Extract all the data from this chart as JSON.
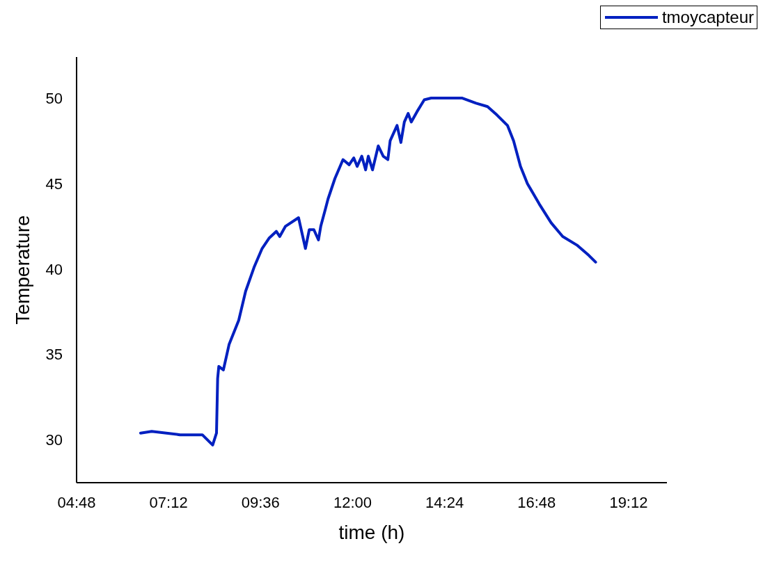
{
  "chart_data": {
    "type": "line",
    "xlabel": "time (h)",
    "ylabel": "Temperature",
    "xlim": [
      4.8,
      20.2
    ],
    "xticks": [
      {
        "value": 4.8,
        "label": "04:48"
      },
      {
        "value": 7.2,
        "label": "07:12"
      },
      {
        "value": 9.6,
        "label": "09:36"
      },
      {
        "value": 12,
        "label": "12:00"
      },
      {
        "value": 14.4,
        "label": "14:24"
      },
      {
        "value": 16.8,
        "label": "16:48"
      },
      {
        "value": 19.2,
        "label": "19:12"
      }
    ],
    "ylim": [
      27.5,
      52.4
    ],
    "yticks": [
      30,
      35,
      40,
      45,
      50
    ],
    "legend": "top right",
    "marker": "none",
    "line_style": "solid",
    "series": [
      {
        "name": "tmoycapteur",
        "color": "#0020c0",
        "x": [
          6.47,
          6.76,
          7.5,
          8.08,
          8.35,
          8.45,
          8.48,
          8.51,
          8.63,
          8.78,
          9.03,
          9.21,
          9.43,
          9.64,
          9.82,
          10.01,
          10.1,
          10.25,
          10.59,
          10.77,
          10.87,
          10.99,
          11.11,
          11.17,
          11.29,
          11.36,
          11.45,
          11.54,
          11.75,
          11.91,
          12.03,
          12.12,
          12.24,
          12.34,
          12.41,
          12.52,
          12.67,
          12.8,
          12.92,
          12.98,
          13.16,
          13.26,
          13.35,
          13.45,
          13.53,
          13.68,
          13.87,
          14.05,
          14.54,
          14.85,
          15.22,
          15.52,
          15.77,
          16.04,
          16.2,
          16.38,
          16.56,
          16.87,
          17.18,
          17.48,
          17.85,
          18.16,
          18.34
        ],
        "values": [
          30.4,
          30.5,
          30.3,
          30.3,
          29.7,
          30.4,
          33.6,
          34.3,
          34.1,
          35.6,
          37.0,
          38.7,
          40.1,
          41.2,
          41.8,
          42.2,
          41.9,
          42.5,
          43.0,
          41.2,
          42.3,
          42.3,
          41.7,
          42.5,
          43.5,
          44.1,
          44.7,
          45.3,
          46.4,
          46.1,
          46.5,
          46.0,
          46.6,
          45.8,
          46.6,
          45.8,
          47.2,
          46.6,
          46.4,
          47.5,
          48.4,
          47.4,
          48.6,
          49.1,
          48.6,
          49.2,
          49.9,
          50.0,
          50.0,
          50.0,
          49.7,
          49.5,
          49.0,
          48.4,
          47.5,
          46.0,
          45.0,
          43.8,
          42.7,
          41.9,
          41.4,
          40.8,
          40.4
        ]
      }
    ]
  }
}
